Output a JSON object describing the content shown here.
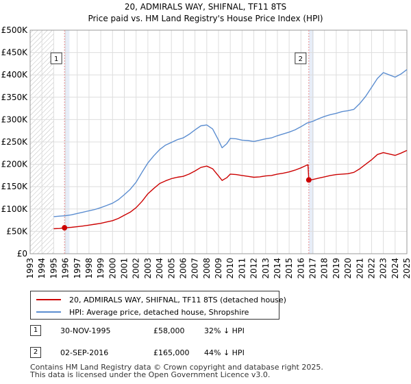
{
  "chart_data": {
    "type": "line",
    "title": "20, ADMIRALS WAY, SHIFNAL, TF11 8TS",
    "subtitle": "Price paid vs. HM Land Registry's House Price Index (HPI)",
    "xlim": [
      1993,
      2025
    ],
    "ylim": [
      0,
      500000
    ],
    "x_ticks": [
      "1993",
      "1994",
      "1995",
      "1996",
      "1997",
      "1998",
      "1999",
      "2000",
      "2001",
      "2002",
      "2003",
      "2004",
      "2005",
      "2006",
      "2007",
      "2008",
      "2009",
      "2010",
      "2011",
      "2012",
      "2013",
      "2014",
      "2015",
      "2016",
      "2017",
      "2018",
      "2019",
      "2020",
      "2021",
      "2022",
      "2023",
      "2024",
      "2025"
    ],
    "y_ticks": [
      {
        "value": 0,
        "label": "£0"
      },
      {
        "value": 50000,
        "label": "£50K"
      },
      {
        "value": 100000,
        "label": "£100K"
      },
      {
        "value": 150000,
        "label": "£150K"
      },
      {
        "value": 200000,
        "label": "£200K"
      },
      {
        "value": 250000,
        "label": "£250K"
      },
      {
        "value": 300000,
        "label": "£300K"
      },
      {
        "value": 350000,
        "label": "£350K"
      },
      {
        "value": 400000,
        "label": "£400K"
      },
      {
        "value": 450000,
        "label": "£450K"
      },
      {
        "value": 500000,
        "label": "£500K"
      }
    ],
    "grid": true,
    "colors": {
      "property": "#cc0000",
      "hpi": "#5b8dd0",
      "sale_marker": "#cc0000",
      "sale_line": "#e88888",
      "shade": "#dde6f5",
      "hatch": "#bbbbbb"
    },
    "hatched_range": [
      1993,
      1995
    ],
    "series": [
      {
        "name": "20, ADMIRALS WAY, SHIFNAL, TF11 8TS (detached house)",
        "key": "property",
        "x": [
          1995.0,
          1995.5,
          1995.92,
          1996.5,
          1997.0,
          1997.5,
          1998.0,
          1998.5,
          1999.0,
          1999.5,
          2000.0,
          2000.5,
          2001.0,
          2001.5,
          2002.0,
          2002.5,
          2003.0,
          2003.5,
          2004.0,
          2004.5,
          2005.0,
          2005.5,
          2006.0,
          2006.5,
          2007.0,
          2007.5,
          2008.0,
          2008.5,
          2009.0,
          2009.3,
          2009.7,
          2010.0,
          2010.5,
          2011.0,
          2011.5,
          2012.0,
          2012.5,
          2013.0,
          2013.5,
          2014.0,
          2014.5,
          2015.0,
          2015.5,
          2016.0,
          2016.5,
          2016.6,
          2016.67,
          2017.0,
          2017.5,
          2018.0,
          2018.5,
          2019.0,
          2019.5,
          2020.0,
          2020.5,
          2021.0,
          2021.5,
          2022.0,
          2022.5,
          2023.0,
          2023.5,
          2024.0,
          2024.5,
          2025.0
        ],
        "y": [
          56000,
          56500,
          58000,
          59000,
          60500,
          62000,
          64000,
          66000,
          68000,
          71000,
          74000,
          79000,
          86000,
          93000,
          103000,
          117000,
          134000,
          146000,
          157000,
          163000,
          168000,
          171000,
          173000,
          178000,
          185000,
          193000,
          196000,
          190000,
          174000,
          164000,
          170000,
          178000,
          177000,
          175000,
          173000,
          171000,
          172000,
          174000,
          175000,
          178000,
          180000,
          183000,
          187000,
          192000,
          198000,
          199000,
          165000,
          166000,
          169000,
          172000,
          175000,
          177000,
          178000,
          179000,
          182000,
          190000,
          200000,
          210000,
          222000,
          226000,
          223000,
          220000,
          225000,
          231000
        ]
      },
      {
        "name": "HPI: Average price, detached house, Shropshire",
        "key": "hpi",
        "x": [
          1995.0,
          1995.5,
          1996.0,
          1996.5,
          1997.0,
          1997.5,
          1998.0,
          1998.5,
          1999.0,
          1999.5,
          2000.0,
          2000.5,
          2001.0,
          2001.5,
          2002.0,
          2002.5,
          2003.0,
          2003.5,
          2004.0,
          2004.5,
          2005.0,
          2005.5,
          2006.0,
          2006.5,
          2007.0,
          2007.5,
          2008.0,
          2008.5,
          2009.0,
          2009.3,
          2009.7,
          2010.0,
          2010.5,
          2011.0,
          2011.5,
          2012.0,
          2012.5,
          2013.0,
          2013.5,
          2014.0,
          2014.5,
          2015.0,
          2015.5,
          2016.0,
          2016.5,
          2017.0,
          2017.5,
          2018.0,
          2018.5,
          2019.0,
          2019.5,
          2020.0,
          2020.5,
          2021.0,
          2021.5,
          2022.0,
          2022.5,
          2023.0,
          2023.5,
          2024.0,
          2024.5,
          2025.0
        ],
        "y": [
          83000,
          84000,
          85000,
          87000,
          90000,
          93000,
          96000,
          99000,
          103000,
          108000,
          113000,
          121000,
          132000,
          144000,
          160000,
          182000,
          203000,
          219000,
          233000,
          243000,
          249000,
          255000,
          259000,
          267000,
          277000,
          286000,
          288000,
          279000,
          254000,
          237000,
          246000,
          258000,
          257000,
          254000,
          253000,
          251000,
          254000,
          257000,
          259000,
          264000,
          268000,
          272000,
          277000,
          284000,
          292000,
          296000,
          302000,
          307000,
          311000,
          314000,
          318000,
          320000,
          323000,
          336000,
          352000,
          372000,
          392000,
          405000,
          400000,
          395000,
          402000,
          412000
        ]
      }
    ],
    "sales": [
      {
        "id": "1",
        "x": 1995.92,
        "price": 58000
      },
      {
        "id": "2",
        "x": 2016.67,
        "price": 165000
      }
    ]
  },
  "legend": {
    "property": "20, ADMIRALS WAY, SHIFNAL, TF11 8TS (detached house)",
    "hpi": "HPI: Average price, detached house, Shropshire"
  },
  "sales_table": [
    {
      "id": "1",
      "date": "30-NOV-1995",
      "price": "£58,000",
      "hpi_note": "32% ↓ HPI"
    },
    {
      "id": "2",
      "date": "02-SEP-2016",
      "price": "£165,000",
      "hpi_note": "44% ↓ HPI"
    }
  ],
  "footer": {
    "line1": "Contains HM Land Registry data © Crown copyright and database right 2025.",
    "line2": "This data is licensed under the Open Government Licence v3.0."
  }
}
